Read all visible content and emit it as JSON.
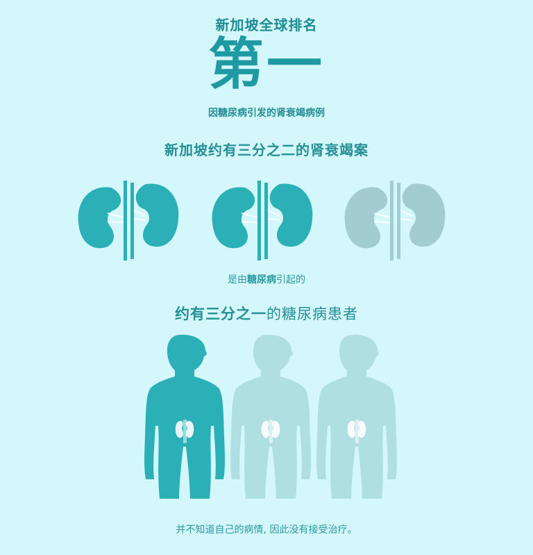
{
  "header": {
    "title": "新加坡全球排名",
    "rank": "第一",
    "caption": "因糖尿病引发的肾衰竭病例"
  },
  "kidney_section": {
    "heading": "新加坡约有三分之二的肾衰竭案",
    "icons": [
      "kidney-icon",
      "kidney-icon",
      "kidney-icon"
    ],
    "highlighted_count": 2,
    "total_count": 3,
    "note_prefix": "是由",
    "note_bold": "糖尿病",
    "note_suffix": "引起的"
  },
  "people_section": {
    "heading_bold": "约有三分之一",
    "heading_rest": "的糖尿病患者",
    "icons": [
      "person-icon",
      "person-icon",
      "person-icon"
    ],
    "highlighted_count": 1,
    "total_count": 3,
    "footer": "并不知道自己的病情, 因此没有接受治疗。"
  },
  "colors": {
    "background": "#d3f7fb",
    "accent": "#2ab0b6",
    "faded_kidney": "#a3ccd0",
    "faded_person": "#b0dfe2",
    "text": "#1f9aa2"
  }
}
